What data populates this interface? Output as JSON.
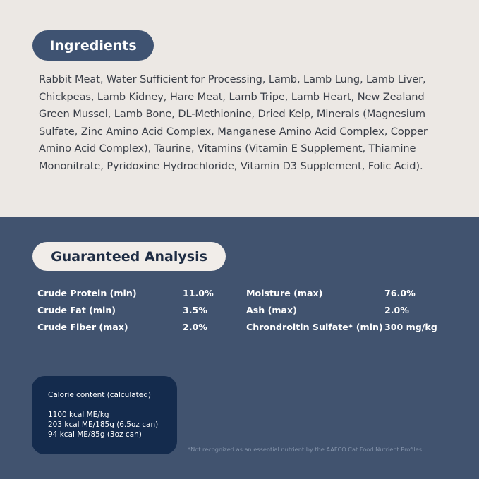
{
  "ingredients": {
    "title": "Ingredients",
    "text": "Rabbit Meat, Water Sufficient for Processing, Lamb, Lamb Lung, Lamb Liver, Chickpeas, Lamb Kidney, Hare Meat, Lamb Tripe, Lamb Heart, New Zealand Green Mussel, Lamb Bone, DL-Methionine, Dried Kelp, Minerals (Magnesium Sulfate, Zinc Amino Acid Complex, Manganese Amino Acid Complex, Copper Amino Acid Complex), Taurine, Vitamins (Vitamin E Supplement, Thiamine Mononitrate, Pyridoxine Hydrochloride, Vitamin D3 Supplement, Folic Acid)."
  },
  "analysis": {
    "title": "Guaranteed Analysis",
    "rows": [
      {
        "n1": "Crude Protein (min)",
        "v1": "11.0%",
        "n2": "Moisture (max)",
        "v2": "76.0%"
      },
      {
        "n1": "Crude Fat (min)",
        "v1": "3.5%",
        "n2": "Ash (max)",
        "v2": "2.0%"
      },
      {
        "n1": "Crude Fiber (max)",
        "v1": "2.0%",
        "n2": "Chrondroitin Sulfate* (min)",
        "v2": "300 mg/kg"
      }
    ]
  },
  "calorie": {
    "title": "Calorie content (calculated)",
    "lines": [
      "1100 kcal ME/kg",
      "203 kcal ME/185g (6.5oz can)",
      "94 kcal ME/85g (3oz can)"
    ]
  },
  "footnote": "*Not recognized as an essential nutrient by the AAFCO Cat Food Nutrient Profiles",
  "colors": {
    "top_bg": "#ece8e4",
    "bottom_bg": "#41536f",
    "calorie_bg": "#142b4d"
  }
}
